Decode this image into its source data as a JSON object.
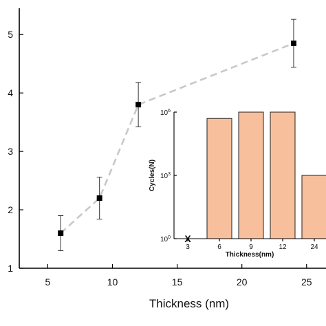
{
  "chart_data": [
    {
      "type": "line",
      "xlabel": "Thickness (nm)",
      "ylabel": "",
      "xlim": [
        2.8,
        26.5
      ],
      "ylim": [
        1,
        5.45
      ],
      "x_ticks": [
        5,
        10,
        15,
        20,
        25
      ],
      "y_ticks": [
        1,
        2,
        3,
        4,
        5
      ],
      "x_tick_labels": [
        "5",
        "10",
        "15",
        "20",
        "25"
      ],
      "y_tick_labels": [
        "1",
        "2",
        "3",
        "4",
        "5"
      ],
      "line_style": "dashed",
      "line_color": "#c8c8c8",
      "marker": "square",
      "marker_color": "#000000",
      "series": [
        {
          "x": [
            6,
            9,
            12,
            24
          ],
          "y": [
            1.6,
            2.2,
            3.8,
            4.85
          ],
          "error": [
            0.3,
            0.36,
            0.38,
            0.41
          ]
        }
      ]
    },
    {
      "type": "bar",
      "inset": true,
      "xlabel": "Thickness(nm)",
      "ylabel": "Cycles(N)",
      "yscale": "log",
      "ylim": [
        1,
        1000000
      ],
      "y_tick_labels": [
        "10^0",
        "10^3",
        "10^6"
      ],
      "categories": [
        "3",
        "6",
        "9",
        "12",
        "24"
      ],
      "values": [
        null,
        500000,
        1000000,
        1000000,
        1000
      ],
      "failed_marker": {
        "category": "3",
        "label": "X"
      },
      "bar_color": "#f7bf9c",
      "bar_edge_color": "#222222"
    }
  ]
}
